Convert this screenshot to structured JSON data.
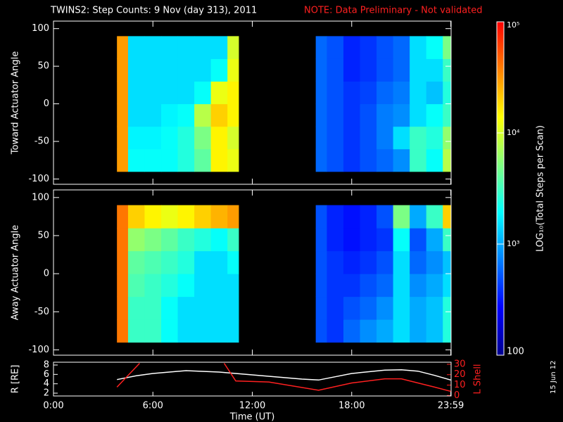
{
  "header": {
    "title": "TWINS2: Step Counts:  9 Nov (day 313), 2011",
    "note": "NOTE: Data Preliminary - Not validated",
    "note_color": "#ff2020"
  },
  "stamp": "15 Jun 12",
  "chart_data": [
    {
      "type": "heatmap",
      "ylabel": "Toward Actuator Angle",
      "xlim": [
        0,
        24
      ],
      "ylim": [
        -107,
        110
      ],
      "yticks": [
        -100,
        -50,
        0,
        50,
        100
      ],
      "xbins": [
        3.83,
        4.5,
        5.5,
        6.5,
        7.5,
        8.5,
        9.5,
        10.5,
        11.17,
        15.83,
        16.5,
        17.5,
        18.5,
        19.5,
        20.5,
        21.5,
        22.5,
        23.5,
        23.98
      ],
      "ybins": [
        -90,
        -60,
        -30,
        0,
        30,
        60,
        90
      ],
      "values": [
        [
          30000,
          2000,
          2000,
          2000,
          2500,
          4000,
          15000,
          12000,
          null,
          600,
          500,
          400,
          500,
          600,
          800,
          3000,
          2000,
          8000
        ],
        [
          30000,
          1800,
          1800,
          2000,
          2500,
          5000,
          15000,
          10000,
          null,
          600,
          500,
          400,
          500,
          700,
          1500,
          3000,
          2500,
          6000
        ],
        [
          30000,
          1500,
          1500,
          1800,
          2000,
          8000,
          20000,
          15000,
          null,
          600,
          500,
          400,
          500,
          700,
          800,
          1500,
          2000,
          3000
        ],
        [
          30000,
          1500,
          1500,
          1500,
          1500,
          2000,
          12000,
          15000,
          null,
          600,
          500,
          400,
          450,
          600,
          700,
          1500,
          1200,
          2500
        ],
        [
          30000,
          1500,
          1500,
          1500,
          1500,
          1500,
          2000,
          12000,
          null,
          600,
          500,
          350,
          400,
          500,
          600,
          1500,
          1500,
          3000
        ],
        [
          30000,
          1500,
          1500,
          1500,
          1500,
          1500,
          1500,
          10000,
          null,
          600,
          500,
          350,
          400,
          500,
          600,
          1500,
          2000,
          5000
        ]
      ]
    },
    {
      "type": "heatmap",
      "ylabel": "Away Actuator Angle",
      "xlim": [
        0,
        24
      ],
      "ylim": [
        -107,
        110
      ],
      "yticks": [
        -100,
        -50,
        0,
        50,
        100
      ],
      "xbins": [
        3.83,
        4.5,
        5.5,
        6.5,
        7.5,
        8.5,
        9.5,
        10.5,
        11.17,
        15.83,
        16.5,
        17.5,
        18.5,
        19.5,
        20.5,
        21.5,
        22.5,
        23.5,
        23.98
      ],
      "ybins": [
        -90,
        -60,
        -30,
        0,
        30,
        60,
        90
      ],
      "values": [
        [
          40000,
          3000,
          3000,
          2000,
          1500,
          1500,
          1500,
          1500,
          null,
          500,
          400,
          600,
          800,
          1000,
          1500,
          1000,
          1200,
          2500
        ],
        [
          40000,
          3000,
          3000,
          2000,
          1500,
          1500,
          1500,
          1500,
          null,
          500,
          400,
          500,
          600,
          800,
          1500,
          1000,
          1200,
          2500
        ],
        [
          40000,
          3500,
          3000,
          2500,
          2000,
          1500,
          1500,
          1500,
          null,
          500,
          400,
          400,
          500,
          600,
          1500,
          800,
          1000,
          1500
        ],
        [
          40000,
          4000,
          3500,
          3000,
          2500,
          1500,
          1500,
          2000,
          null,
          500,
          400,
          350,
          400,
          500,
          1500,
          600,
          800,
          1200
        ],
        [
          40000,
          6000,
          5000,
          4000,
          3000,
          2500,
          2000,
          3000,
          null,
          500,
          350,
          300,
          350,
          400,
          2000,
          500,
          1000,
          3000
        ],
        [
          40000,
          20000,
          15000,
          12000,
          15000,
          20000,
          25000,
          30000,
          null,
          500,
          350,
          300,
          350,
          500,
          5000,
          1000,
          3000,
          20000
        ]
      ]
    },
    {
      "type": "line",
      "xlabel": "Time (UT)",
      "ylabel": "R [RE]",
      "y2label": "L Shell",
      "xlim": [
        0,
        24
      ],
      "xticks": [
        {
          "value": 0,
          "label": "0:00"
        },
        {
          "value": 6,
          "label": "6:00"
        },
        {
          "value": 12,
          "label": "12:00"
        },
        {
          "value": 18,
          "label": "18:00"
        },
        {
          "value": 23.98,
          "label": "23:59"
        }
      ],
      "ylim": [
        1.4,
        8.6
      ],
      "yticks": [
        2,
        4,
        6,
        8
      ],
      "y2lim": [
        -0.5,
        32
      ],
      "y2ticks": [
        0,
        10,
        20,
        30
      ],
      "y2color": "#ff2020",
      "series": [
        {
          "name": "R",
          "color": "#ffffff",
          "x": [
            3.83,
            5,
            6,
            8,
            10,
            11,
            13,
            15,
            16,
            17,
            18,
            20,
            21,
            22,
            23,
            23.98
          ],
          "values": [
            4.9,
            5.7,
            6.2,
            6.8,
            6.5,
            6.2,
            5.6,
            5.0,
            4.8,
            5.5,
            6.2,
            6.9,
            7.0,
            6.7,
            5.8,
            4.8
          ]
        },
        {
          "name": "L Shell",
          "color": "#ff2020",
          "axis": "y2",
          "x": [
            3.83,
            5.2,
            7,
            10.3,
            11,
            13,
            16,
            18,
            20,
            21,
            22,
            23,
            23.98
          ],
          "values": [
            8,
            31,
            null,
            31,
            14,
            13,
            5,
            12,
            16,
            16,
            12,
            8,
            4
          ]
        }
      ]
    },
    {
      "type": "colorbar",
      "label": "LOG₁₀(Total Steps per Scan)",
      "log_scale": true,
      "zlim": [
        100,
        100000
      ],
      "zticks": [
        100,
        {
          "value": 1000,
          "label": "10³"
        },
        {
          "value": 10000,
          "label": "10⁴"
        },
        {
          "value": 100000,
          "label": "10⁵"
        }
      ],
      "colors": [
        "#000090",
        "#0000ff",
        "#0080ff",
        "#00ffff",
        "#80ff80",
        "#ffff00",
        "#ff8000",
        "#ff0000"
      ]
    }
  ]
}
